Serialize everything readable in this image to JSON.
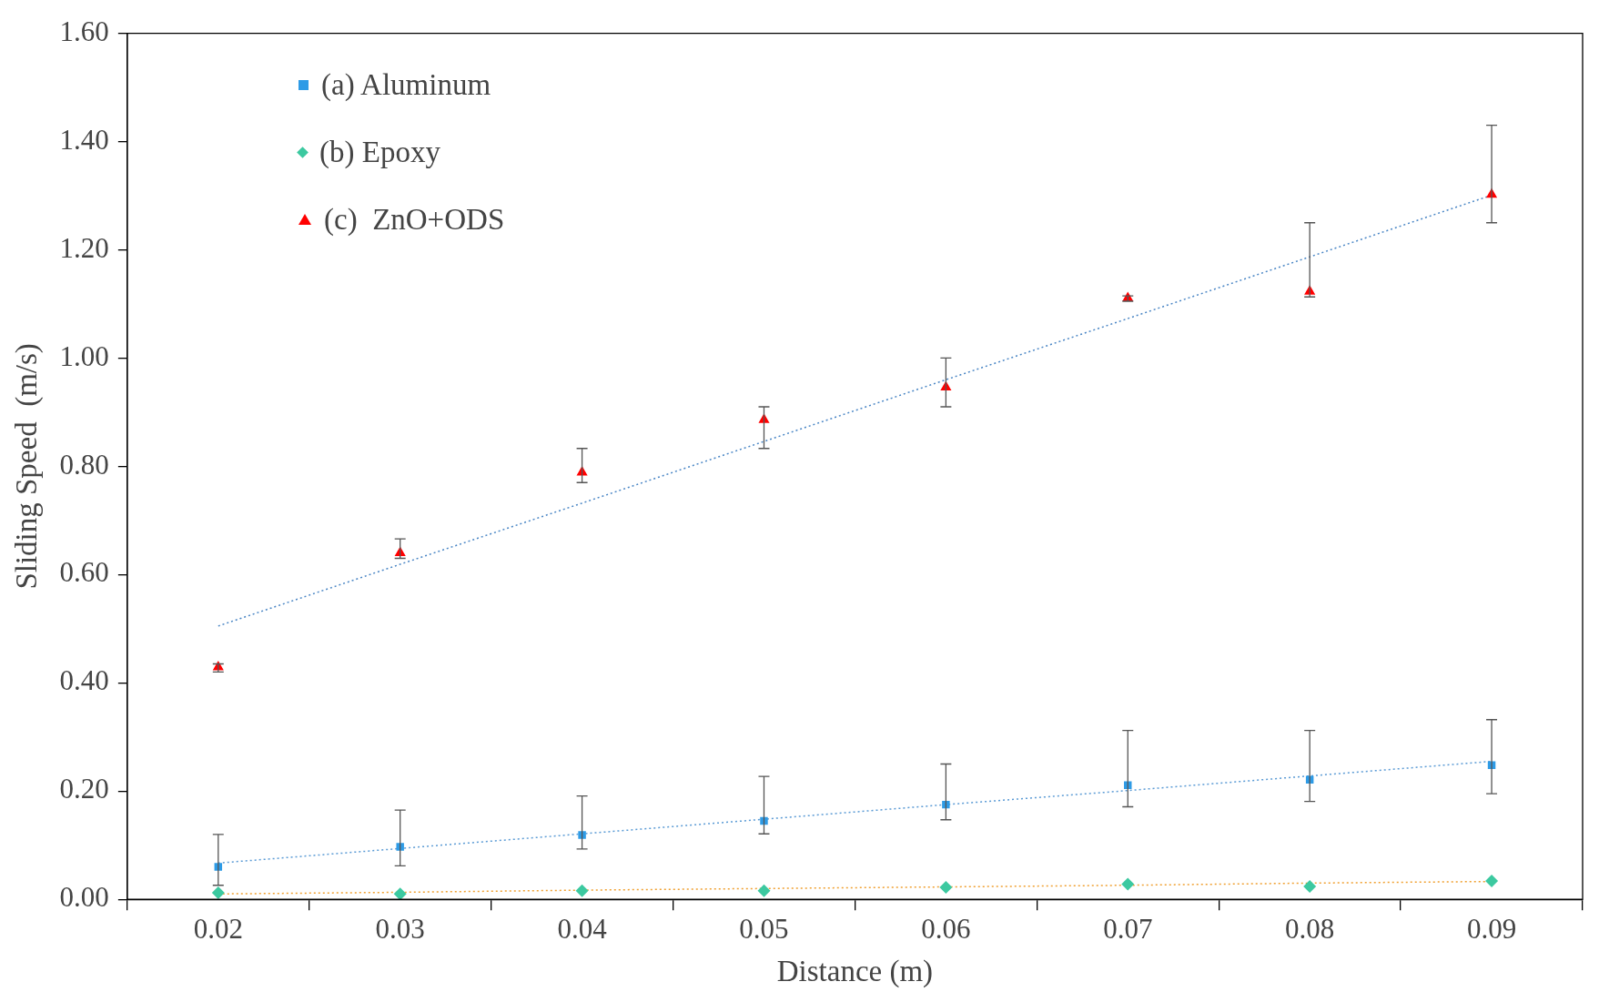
{
  "chart_data": {
    "type": "scatter",
    "xlabel": "Distance (m)",
    "ylabel": "Sliding Speed  (m/s)",
    "categories": [
      "0.02",
      "0.03",
      "0.04",
      "0.05",
      "0.06",
      "0.07",
      "0.08",
      "0.09"
    ],
    "ylim": [
      0,
      1.6
    ],
    "yticks": [
      {
        "value": 0,
        "label": "0.00"
      },
      {
        "value": 0.2,
        "label": "0.20"
      },
      {
        "value": 0.4,
        "label": "0.40"
      },
      {
        "value": 0.6,
        "label": "0.60"
      },
      {
        "value": 0.8,
        "label": "0.80"
      },
      {
        "value": 1.0,
        "label": "1.00"
      },
      {
        "value": 1.2,
        "label": "1.20"
      },
      {
        "value": 1.4,
        "label": "1.40"
      },
      {
        "value": 1.6,
        "label": "1.60"
      }
    ],
    "grid": false,
    "legend": "top left",
    "series": [
      {
        "name": "(a) Aluminum",
        "color": "#2e9be6",
        "marker": "square",
        "values": [
          0.06,
          0.097,
          0.119,
          0.145,
          0.175,
          0.211,
          0.221,
          0.248
        ],
        "errors": [
          [
            0.026,
            0.12
          ],
          [
            0.062,
            0.165
          ],
          [
            0.093,
            0.191
          ],
          [
            0.121,
            0.227
          ],
          [
            0.147,
            0.25
          ],
          [
            0.171,
            0.312
          ],
          [
            0.181,
            0.312
          ],
          [
            0.195,
            0.332
          ]
        ]
      },
      {
        "name": "(b) Epoxy",
        "color": "#3cc9a0",
        "marker": "diamond",
        "values": [
          0.012,
          0.01,
          0.016,
          0.016,
          0.022,
          0.028,
          0.024,
          0.034
        ]
      },
      {
        "name": "(c)  ZnO+ODS",
        "color": "#ff0000",
        "marker": "triangle",
        "values": [
          0.429,
          0.64,
          0.789,
          0.886,
          0.946,
          1.111,
          1.123,
          1.302
        ],
        "errors": [
          [
            0.42,
            0.435
          ],
          [
            0.63,
            0.666
          ],
          [
            0.77,
            0.833
          ],
          [
            0.833,
            0.91
          ],
          [
            0.91,
            1.0
          ],
          [
            1.105,
            1.115
          ],
          [
            1.113,
            1.25
          ],
          [
            1.25,
            1.43
          ]
        ]
      },
      {
        "type": "line",
        "color": "#5b9bd5",
        "line_style": "dotted",
        "marker": "none",
        "values": [
          0.067,
          0.094,
          0.121,
          0.148,
          0.175,
          0.201,
          0.228,
          0.255
        ]
      },
      {
        "type": "line",
        "color": "#f0a030",
        "line_style": "dotted",
        "marker": "none",
        "values": [
          0.01,
          0.013,
          0.017,
          0.02,
          0.023,
          0.026,
          0.03,
          0.033
        ]
      },
      {
        "type": "line",
        "color": "#4a86c5",
        "line_style": "dotted",
        "marker": "none",
        "values": [
          0.505,
          0.619,
          0.732,
          0.846,
          0.96,
          1.073,
          1.187,
          1.301
        ]
      }
    ]
  }
}
